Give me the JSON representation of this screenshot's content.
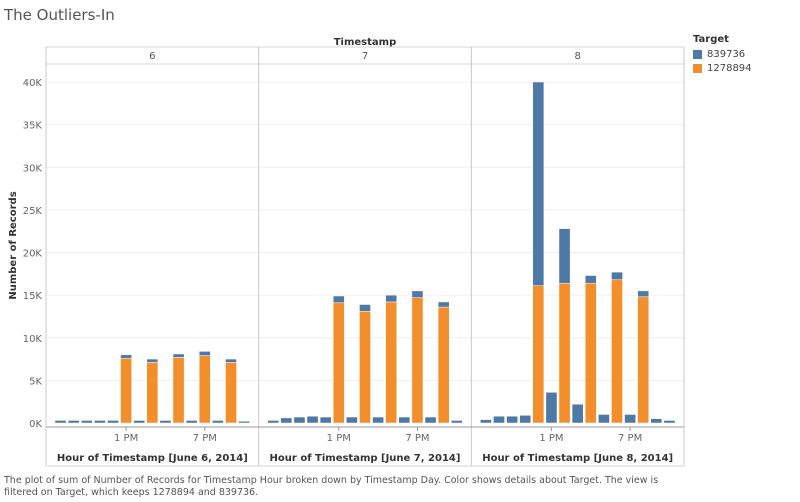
{
  "title": "The Outliers-In",
  "caption": "The plot of sum of Number of Records for Timestamp Hour broken down by Timestamp Day.  Color shows details about Target. The view is filtered on Target, which keeps 1278894 and 839736.",
  "legend": {
    "title": "Target",
    "items": [
      {
        "label": "839736",
        "color": "#4e79a7"
      },
      {
        "label": "1278894",
        "color": "#f28e2b"
      }
    ]
  },
  "chart_data": {
    "type": "bar",
    "stacked": true,
    "column_header": "Timestamp",
    "ylabel": "Number of Records",
    "ylim": [
      0,
      40000
    ],
    "yticks": [
      "0K",
      "5K",
      "10K",
      "15K",
      "20K",
      "25K",
      "30K",
      "35K",
      "40K"
    ],
    "x_tick_labels": [
      "1 PM",
      "7 PM"
    ],
    "series_order": [
      "839736",
      "1278894"
    ],
    "panels": [
      {
        "header": "6",
        "xlabel": "Hour of Timestamp [June 6, 2014]",
        "hours": [
          8,
          9,
          10,
          11,
          12,
          13,
          14,
          15,
          16,
          17,
          18,
          19,
          20,
          21,
          22
        ],
        "series": [
          {
            "name": "839736",
            "values": [
              300,
              300,
              300,
              300,
              300,
              400,
              300,
              400,
              300,
              400,
              300,
              500,
              300,
              400,
              200
            ]
          },
          {
            "name": "1278894",
            "values": [
              0,
              0,
              0,
              0,
              0,
              7600,
              0,
              7100,
              0,
              7700,
              0,
              7900,
              0,
              7100,
              0
            ]
          }
        ]
      },
      {
        "header": "7",
        "xlabel": "Hour of Timestamp [June 7, 2014]",
        "hours": [
          8,
          9,
          10,
          11,
          12,
          13,
          14,
          15,
          16,
          17,
          18,
          19,
          20,
          21,
          22
        ],
        "series": [
          {
            "name": "839736",
            "values": [
              300,
              600,
              700,
              800,
              700,
              800,
              700,
              800,
              700,
              800,
              700,
              800,
              700,
              600,
              300
            ]
          },
          {
            "name": "1278894",
            "values": [
              0,
              0,
              0,
              0,
              0,
              14100,
              0,
              13100,
              0,
              14200,
              0,
              14700,
              0,
              13600,
              0
            ]
          }
        ]
      },
      {
        "header": "8",
        "xlabel": "Hour of Timestamp [June 8, 2014]",
        "hours": [
          8,
          9,
          10,
          11,
          12,
          13,
          14,
          15,
          16,
          17,
          18,
          19,
          20,
          21,
          22
        ],
        "series": [
          {
            "name": "839736",
            "values": [
              400,
              800,
              800,
              900,
              23900,
              3600,
              6400,
              2200,
              900,
              1000,
              900,
              1000,
              700,
              500,
              300
            ]
          },
          {
            "name": "1278894",
            "values": [
              0,
              0,
              0,
              0,
              16100,
              0,
              16400,
              0,
              16400,
              0,
              16800,
              0,
              14800,
              0,
              0
            ]
          }
        ]
      }
    ]
  }
}
